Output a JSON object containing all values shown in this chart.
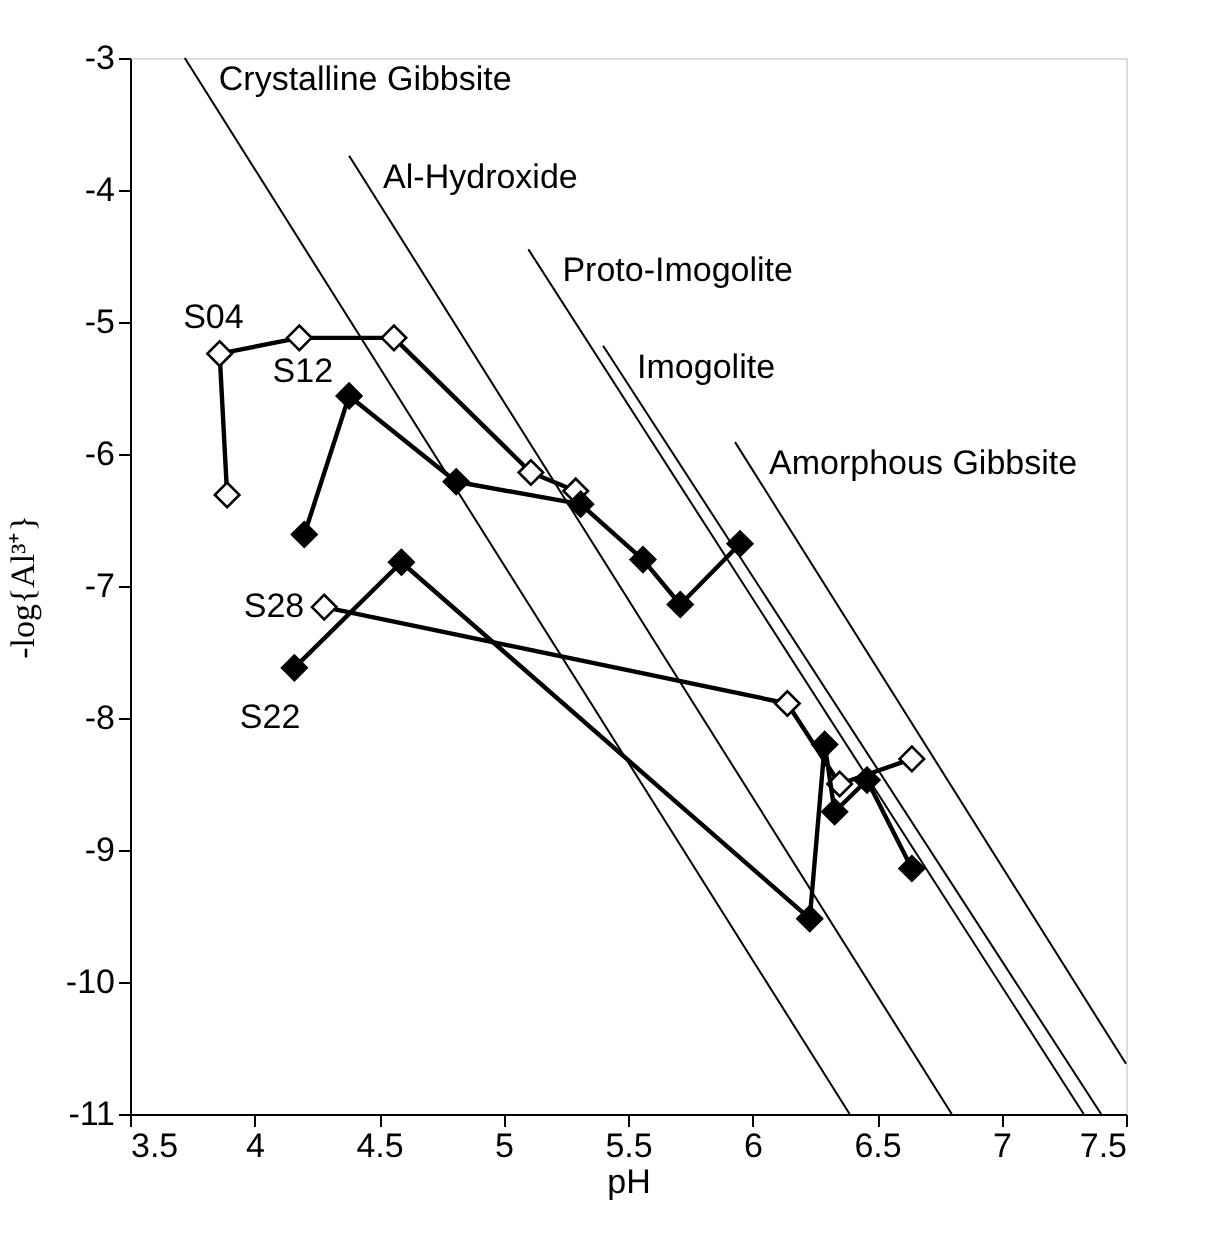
{
  "chart_data": {
    "type": "line",
    "xlabel": "pH",
    "ylabel": "-log{Al³⁺}",
    "xlim": [
      3.5,
      7.5
    ],
    "ylim": [
      -11,
      -3
    ],
    "xticks": [
      3.5,
      4,
      4.5,
      5,
      5.5,
      6,
      6.5,
      7,
      7.5
    ],
    "yticks": [
      -11,
      -10,
      -9,
      -8,
      -7,
      -6,
      -5,
      -4,
      -3
    ],
    "grid": false,
    "series": [
      {
        "name": "Crystalline Gibbsite",
        "type": "line",
        "marker": "none",
        "color": "#000000",
        "x": [
          3.72,
          6.39
        ],
        "values": [
          -3.0,
          -11.0
        ]
      },
      {
        "name": "Al-Hydroxide",
        "type": "line",
        "marker": "none",
        "color": "#000000",
        "x": [
          4.38,
          6.8
        ],
        "values": [
          -3.74,
          -11.0
        ]
      },
      {
        "name": "Proto-Imogolite",
        "type": "line",
        "marker": "none",
        "color": "#000000",
        "x": [
          5.1,
          7.33
        ],
        "values": [
          -4.45,
          -11.0
        ]
      },
      {
        "name": "Imogolite",
        "type": "line",
        "marker": "none",
        "color": "#000000",
        "x": [
          5.4,
          7.4
        ],
        "values": [
          -5.18,
          -11.0
        ]
      },
      {
        "name": "Amorphous Gibbsite",
        "type": "line",
        "marker": "none",
        "color": "#000000",
        "x": [
          5.93,
          7.5
        ],
        "values": [
          -5.91,
          -10.62
        ]
      },
      {
        "name": "S04",
        "type": "line",
        "marker": "diamond",
        "color": "#ffffff",
        "x": [
          3.89,
          3.86,
          4.18,
          4.56,
          5.11,
          5.29
        ],
        "values": [
          -6.31,
          -5.24,
          -5.12,
          -5.12,
          -6.14,
          -6.28
        ]
      },
      {
        "name": "S12",
        "type": "line",
        "marker": "diamond",
        "color": "#000000",
        "x": [
          4.2,
          4.38,
          4.81,
          5.31,
          5.56,
          5.71,
          5.95
        ],
        "values": [
          -6.61,
          -5.56,
          -6.21,
          -6.38,
          -6.8,
          -7.14,
          -6.68
        ]
      },
      {
        "name": "S28",
        "type": "line",
        "marker": "diamond",
        "color": "#ffffff",
        "x": [
          4.28,
          6.14,
          6.35,
          6.64
        ],
        "values": [
          -7.16,
          -7.89,
          -8.5,
          -8.31
        ]
      },
      {
        "name": "S22",
        "type": "line",
        "marker": "diamond",
        "color": "#000000",
        "x": [
          4.16,
          4.59,
          6.23,
          6.29,
          6.33,
          6.46,
          6.64
        ],
        "values": [
          -7.62,
          -6.82,
          -9.52,
          -8.2,
          -8.71,
          -8.47,
          -9.14
        ]
      }
    ]
  }
}
